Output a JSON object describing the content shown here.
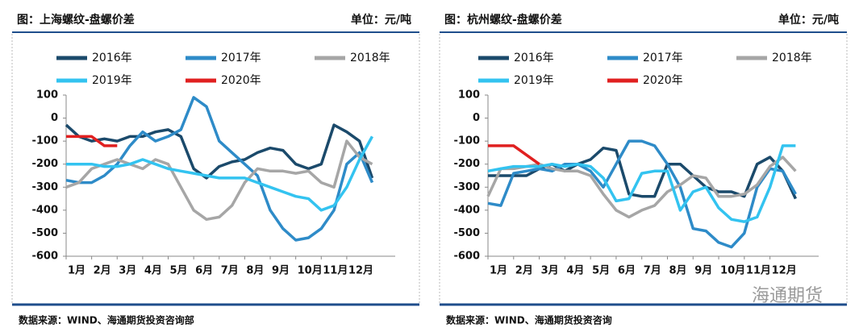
{
  "chart_data": [
    {
      "type": "line",
      "title": "图：上海螺纹-盘螺价差",
      "unit": "单位：元/吨",
      "source": "数据来源：WIND、海通期货投资咨询部",
      "x": [
        1,
        1.5,
        2,
        2.5,
        3,
        3.5,
        4,
        4.5,
        5,
        5.5,
        6,
        6.5,
        7,
        7.5,
        8,
        8.5,
        9,
        9.5,
        10,
        10.5,
        11,
        11.5,
        12,
        12.5,
        13
      ],
      "xlim": [
        1,
        13.9
      ],
      "xticks": [
        {
          "value": 1,
          "label": "1月"
        },
        {
          "value": 2,
          "label": "2月"
        },
        {
          "value": 3,
          "label": "3月"
        },
        {
          "value": 4,
          "label": "4月"
        },
        {
          "value": 5,
          "label": "5月"
        },
        {
          "value": 6,
          "label": "6月"
        },
        {
          "value": 7,
          "label": "7月"
        },
        {
          "value": 8,
          "label": "8月"
        },
        {
          "value": 9,
          "label": "9月"
        },
        {
          "value": 10,
          "label": "10月"
        },
        {
          "value": 11,
          "label": "11月"
        },
        {
          "value": 12,
          "label": "12月"
        }
      ],
      "ylim": [
        -600,
        100
      ],
      "yticks": [
        100,
        0,
        -100,
        -200,
        -300,
        -400,
        -500,
        -600
      ],
      "series": [
        {
          "name": "2016年",
          "color": "#1b4a6b",
          "values": [
            -30,
            -80,
            -100,
            -90,
            -100,
            -80,
            -80,
            -60,
            -50,
            -80,
            -220,
            -260,
            -210,
            -190,
            -180,
            -150,
            -130,
            -140,
            -200,
            -220,
            -200,
            -30,
            -60,
            -100,
            -260
          ]
        },
        {
          "name": "2017年",
          "color": "#2e8bc8",
          "values": [
            -270,
            -280,
            -280,
            -250,
            -200,
            -120,
            -60,
            -100,
            -80,
            -50,
            90,
            50,
            -100,
            -150,
            -200,
            -250,
            -400,
            -480,
            -530,
            -520,
            -480,
            -400,
            -200,
            -150,
            -280
          ]
        },
        {
          "name": "2018年",
          "color": "#a6a6a6",
          "values": [
            -300,
            -280,
            -220,
            -200,
            -180,
            -200,
            -220,
            -180,
            -200,
            -300,
            -400,
            -440,
            -430,
            -380,
            -280,
            -220,
            -230,
            -230,
            -240,
            -230,
            -280,
            -300,
            -100,
            -170,
            -200
          ]
        },
        {
          "name": "2019年",
          "color": "#33c3f0",
          "values": [
            -200,
            -200,
            -200,
            -210,
            -210,
            -200,
            -180,
            -200,
            -220,
            -230,
            -240,
            -250,
            -260,
            -260,
            -260,
            -280,
            -300,
            -320,
            -340,
            -350,
            -400,
            -380,
            -300,
            -180,
            -80
          ]
        },
        {
          "name": "2020年",
          "color": "#e02020",
          "values": [
            -80,
            -80,
            -80,
            -120,
            -120,
            null,
            null,
            null,
            null,
            null,
            null,
            null,
            null,
            null,
            null,
            null,
            null,
            null,
            null,
            null,
            null,
            null,
            null,
            null,
            null
          ]
        }
      ]
    },
    {
      "type": "line",
      "title": "图：杭州螺纹-盘螺价差",
      "unit": "单位：元/吨",
      "source": "数据来源：WIND、海通期货投资咨询",
      "x": [
        1,
        1.5,
        2,
        2.5,
        3,
        3.5,
        4,
        4.5,
        5,
        5.5,
        6,
        6.5,
        7,
        7.5,
        8,
        8.5,
        9,
        9.5,
        10,
        10.5,
        11,
        11.5,
        12,
        12.5,
        13
      ],
      "xlim": [
        1,
        13.9
      ],
      "xticks": [
        {
          "value": 1,
          "label": "1月"
        },
        {
          "value": 2,
          "label": "2月"
        },
        {
          "value": 3,
          "label": "3月"
        },
        {
          "value": 4,
          "label": "4月"
        },
        {
          "value": 5,
          "label": "5月"
        },
        {
          "value": 6,
          "label": "6月"
        },
        {
          "value": 7,
          "label": "7月"
        },
        {
          "value": 8,
          "label": "8月"
        },
        {
          "value": 9,
          "label": "9月"
        },
        {
          "value": 10,
          "label": "10月"
        },
        {
          "value": 11,
          "label": "11月"
        },
        {
          "value": 12,
          "label": "12月"
        }
      ],
      "ylim": [
        -600,
        100
      ],
      "yticks": [
        100,
        0,
        -100,
        -200,
        -300,
        -400,
        -500,
        -600
      ],
      "series": [
        {
          "name": "2016年",
          "color": "#1b4a6b",
          "values": [
            -250,
            -250,
            -250,
            -250,
            -220,
            -200,
            -230,
            -200,
            -180,
            -130,
            -140,
            -330,
            -340,
            -340,
            -200,
            -200,
            -250,
            -300,
            -320,
            -320,
            -340,
            -200,
            -170,
            -230,
            -350
          ]
        },
        {
          "name": "2017年",
          "color": "#2e8bc8",
          "values": [
            -370,
            -380,
            -240,
            -230,
            -220,
            -230,
            -200,
            -200,
            -230,
            -300,
            -200,
            -100,
            -100,
            -120,
            -200,
            -300,
            -480,
            -490,
            -540,
            -560,
            -500,
            -300,
            -220,
            -230,
            -330
          ]
        },
        {
          "name": "2018年",
          "color": "#a6a6a6",
          "values": [
            -340,
            -220,
            -220,
            -210,
            -200,
            -220,
            -230,
            -230,
            -250,
            -330,
            -400,
            -430,
            -400,
            -380,
            -320,
            -290,
            -250,
            -260,
            -340,
            -340,
            -330,
            -290,
            -210,
            -170,
            -230
          ]
        },
        {
          "name": "2019年",
          "color": "#33c3f0",
          "values": [
            -230,
            -220,
            -210,
            -210,
            -210,
            -200,
            -210,
            -200,
            -210,
            -260,
            -360,
            -350,
            -240,
            -230,
            -230,
            -400,
            -320,
            -300,
            -390,
            -440,
            -450,
            -430,
            -300,
            -120,
            -120
          ]
        },
        {
          "name": "2020年",
          "color": "#e02020",
          "values": [
            -120,
            -120,
            -120,
            -160,
            -200,
            null,
            null,
            null,
            null,
            null,
            null,
            null,
            null,
            null,
            null,
            null,
            null,
            null,
            null,
            null,
            null,
            null,
            null,
            null,
            null
          ]
        }
      ]
    }
  ],
  "watermark": "海通期货"
}
